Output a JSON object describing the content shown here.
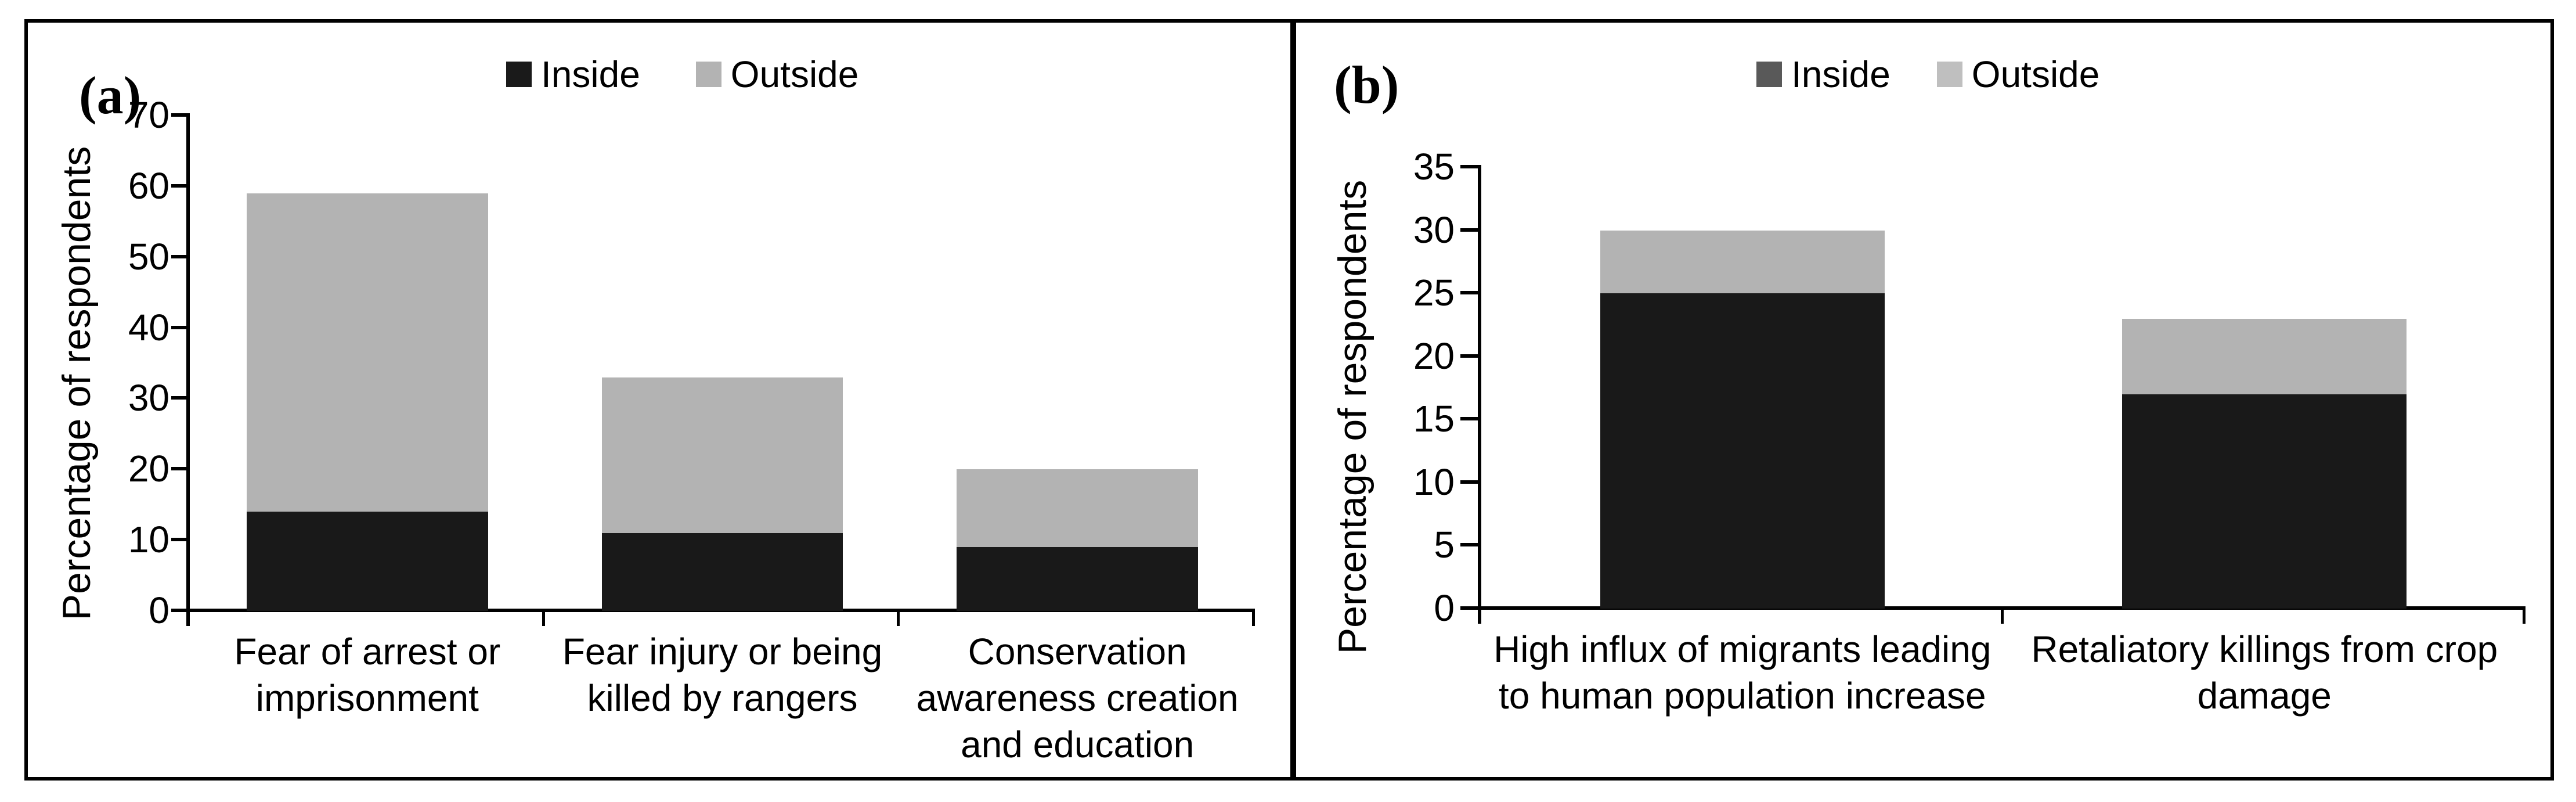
{
  "figure": {
    "background": "#ffffff",
    "border_color": "#000000"
  },
  "chart_data": [
    {
      "type": "bar",
      "stacked": true,
      "panel_label": "(a)",
      "categories": [
        "Fear of arrest or imprisonment",
        "Fear injury or being killed by rangers",
        "Conservation awareness creation and education"
      ],
      "series": [
        {
          "name": "Inside",
          "values": [
            14,
            11,
            9
          ],
          "color": "#191919",
          "legend_color": "#1a1a1a"
        },
        {
          "name": "Outside",
          "values": [
            45,
            22,
            11
          ],
          "color": "#b3b3b3",
          "legend_color": "#b3b3b3"
        }
      ],
      "stack_totals": [
        59,
        33,
        20
      ],
      "ylabel": "Percentage of respondents",
      "xlabel": "",
      "ylim": [
        0,
        70
      ],
      "yticks": [
        0,
        10,
        20,
        30,
        40,
        50,
        60,
        70
      ],
      "legend_position": "top-center",
      "grid": false
    },
    {
      "type": "bar",
      "stacked": true,
      "panel_label": "(b)",
      "categories": [
        "High influx of migrants leading to human population increase",
        "Retaliatory killings from crop damage"
      ],
      "series": [
        {
          "name": "Inside",
          "values": [
            25,
            17
          ],
          "color": "#191919",
          "legend_color": "#595959"
        },
        {
          "name": "Outside",
          "values": [
            5,
            6
          ],
          "color": "#b3b3b3",
          "legend_color": "#bfbfbf"
        }
      ],
      "stack_totals": [
        30,
        23
      ],
      "ylabel": "Percentage of respondents",
      "xlabel": "",
      "ylim": [
        0,
        35
      ],
      "yticks": [
        0,
        5,
        10,
        15,
        20,
        25,
        30,
        35
      ],
      "legend_position": "top-center",
      "grid": false
    }
  ]
}
